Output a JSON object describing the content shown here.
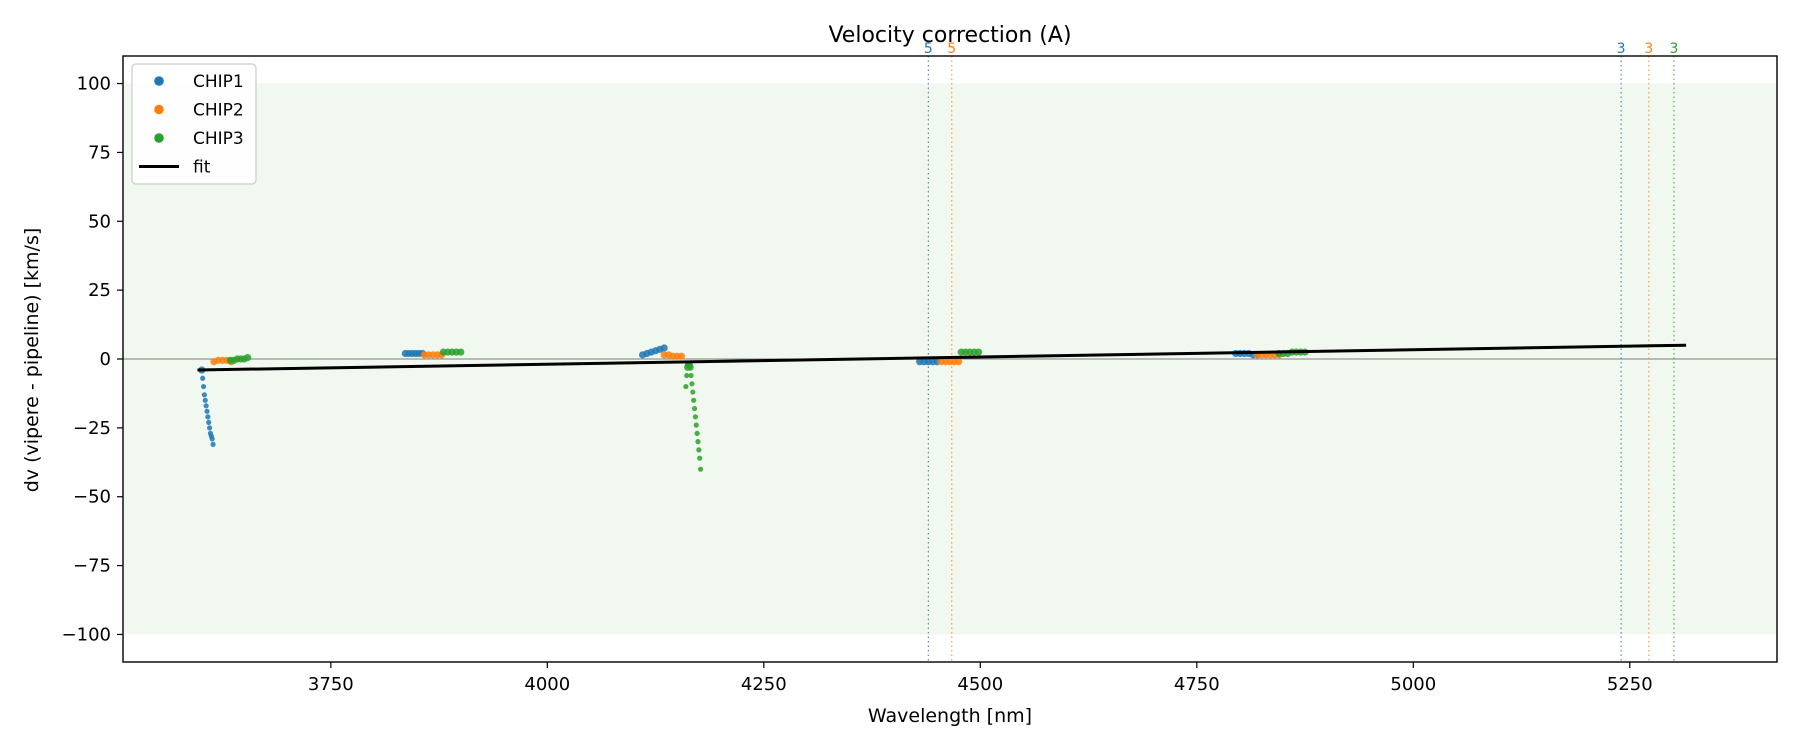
{
  "chart_data": {
    "type": "scatter",
    "title": "Velocity correction (A)",
    "xlabel": "Wavelength [nm]",
    "ylabel": "dv (vipere - pipeline) [km/s]",
    "xlim": [
      3510,
      5420
    ],
    "ylim": [
      -110,
      110
    ],
    "x_ticks": [
      3750,
      4000,
      4250,
      4500,
      4750,
      5000,
      5250
    ],
    "y_ticks": [
      100,
      75,
      50,
      25,
      0,
      -25,
      -50,
      -75,
      -100
    ],
    "grid": false,
    "legend_placement": "top-left",
    "shaded_band": {
      "y": [
        -100,
        100
      ],
      "color": "#e8f4e8"
    },
    "zero_line": {
      "y": 0,
      "color": "#808080"
    },
    "legend": [
      {
        "label": "CHIP1",
        "kind": "marker",
        "color": "#1f77b4"
      },
      {
        "label": "CHIP2",
        "kind": "marker",
        "color": "#ff7f0e"
      },
      {
        "label": "CHIP3",
        "kind": "marker",
        "color": "#2ca02c"
      },
      {
        "label": "fit",
        "kind": "line",
        "color": "#000000"
      }
    ],
    "series": [
      {
        "name": "CHIP1",
        "color": "#1f77b4",
        "x": [
          3601,
          3602,
          3603,
          3604,
          3605,
          3606,
          3607,
          3608,
          3609,
          3610,
          3611,
          3612,
          3613,
          3614,
          3836,
          3840,
          3844,
          3848,
          3852,
          3856,
          4110,
          4115,
          4120,
          4125,
          4130,
          4135,
          4430,
          4435,
          4440,
          4445,
          4450,
          4795,
          4800,
          4805,
          4810,
          4815,
          4820
        ],
        "y": [
          -4,
          -7,
          -10,
          -13,
          -15,
          -17,
          -19,
          -21,
          -23,
          -25,
          -27,
          -28,
          -29,
          -31,
          2,
          2,
          2,
          2,
          2,
          2,
          1.5,
          2,
          2.5,
          3,
          3.5,
          4,
          -1,
          -1,
          -1,
          -1,
          -1,
          2,
          2,
          2,
          2,
          1.5,
          1.5
        ]
      },
      {
        "name": "CHIP2",
        "color": "#ff7f0e",
        "x": [
          3615,
          3620,
          3625,
          3630,
          3635,
          3858,
          3863,
          3868,
          3873,
          3878,
          4135,
          4140,
          4145,
          4150,
          4155,
          4455,
          4460,
          4465,
          4470,
          4475,
          4820,
          4825,
          4830,
          4835,
          4840,
          4845
        ],
        "y": [
          -1,
          -0.5,
          -0.5,
          -0.5,
          -1,
          1.5,
          1.5,
          1.5,
          1.5,
          1.5,
          1.5,
          1.5,
          1,
          1,
          1,
          -1,
          -1,
          -1,
          -1,
          -1,
          1.5,
          1.5,
          1.5,
          1.5,
          1.5,
          1.5
        ]
      },
      {
        "name": "CHIP3",
        "color": "#2ca02c",
        "x": [
          3634,
          3638,
          3642,
          3646,
          3650,
          3654,
          3880,
          3885,
          3890,
          3895,
          3900,
          4160,
          4161,
          4162,
          4163,
          4164,
          4165,
          4166,
          4167,
          4168,
          4169,
          4170,
          4171,
          4172,
          4173,
          4174,
          4175,
          4176,
          4177,
          4478,
          4483,
          4488,
          4493,
          4498,
          4845,
          4850,
          4855,
          4860,
          4865,
          4870,
          4875
        ],
        "y": [
          -0.5,
          -0.5,
          0,
          0,
          0,
          0.5,
          2.5,
          2.5,
          2.5,
          2.5,
          2.5,
          -10,
          -6,
          -3,
          -2,
          -2,
          -3,
          -6,
          -9,
          -12,
          -15,
          -18,
          -21,
          -24,
          -27,
          -30,
          -33,
          -36,
          -40,
          2.5,
          2.5,
          2.5,
          2.5,
          2.5,
          2,
          2,
          2,
          2.5,
          2.5,
          2.5,
          2.5
        ]
      }
    ],
    "fit_line": {
      "name": "fit",
      "x": [
        3596,
        5315
      ],
      "y": [
        -4,
        5
      ]
    },
    "vlines": [
      {
        "x": 4440,
        "label": "5",
        "color": "#1f77b4"
      },
      {
        "x": 4467,
        "label": "5",
        "color": "#ff7f0e"
      },
      {
        "x": 5240,
        "label": "3",
        "color": "#1f77b4"
      },
      {
        "x": 5272,
        "label": "3",
        "color": "#ff7f0e"
      },
      {
        "x": 5301,
        "label": "3",
        "color": "#2ca02c"
      }
    ]
  }
}
